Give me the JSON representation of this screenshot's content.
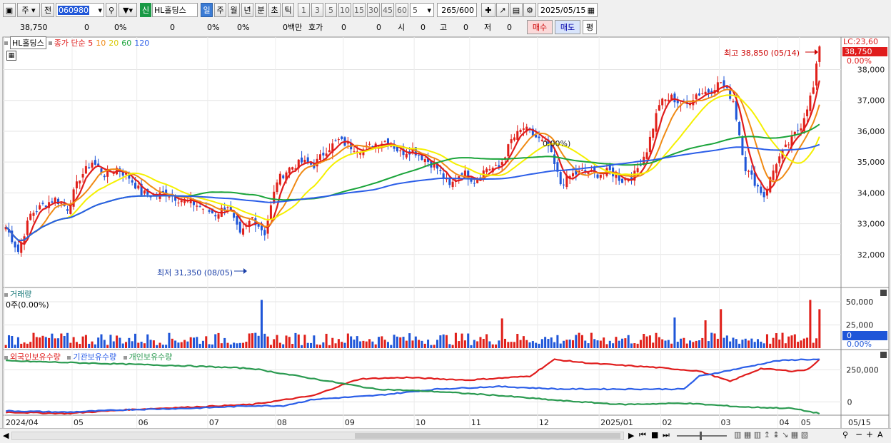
{
  "toolbar": {
    "stock_code": "060980",
    "period_type": "주",
    "prev_label": "전",
    "market_badge": "신",
    "stock_name": "HL홀딩스",
    "periods": [
      "일",
      "주",
      "월",
      "년",
      "분",
      "초",
      "틱"
    ],
    "active_period": "일",
    "minute_options": [
      "1",
      "3",
      "5",
      "10",
      "15",
      "30",
      "45",
      "60"
    ],
    "interval": "5",
    "count": "265",
    "count_total": "/600",
    "date": "2025/05/15"
  },
  "quote": {
    "price": "38,750",
    "change": "0",
    "change_pct": "0%",
    "volume": "0",
    "volume_pct": "0%",
    "extra_pct": "0%",
    "trade_value": "0백만",
    "hoga_label": "호가",
    "hoga_v1": "0",
    "hoga_v2": "0",
    "open_label": "시",
    "open": "0",
    "high_label": "고",
    "high": "0",
    "low_label": "저",
    "low": "0",
    "buy_label": "매수",
    "sell_label": "매도",
    "eval_label": "평"
  },
  "colors": {
    "up": "#e0201a",
    "down": "#1f56d8",
    "ma5": "#e01c1c",
    "ma10": "#f08a14",
    "ma20": "#f5f000",
    "ma60": "#1aa43a",
    "ma120": "#2b5ee8",
    "foreign": "#e01c1c",
    "institution": "#2b5ee8",
    "individual": "#2a9a50"
  },
  "chart_data": [
    {
      "type": "candlestick",
      "title": "HL홀딩스",
      "legend": [
        "종가 단순 5",
        "10",
        "20",
        "60",
        "120"
      ],
      "y_ticks": [
        32000,
        33000,
        34000,
        35000,
        36000,
        37000,
        38000
      ],
      "ylim": [
        31000,
        39100
      ],
      "lc_label": "LC:23,60",
      "last_price_tag": "38,750",
      "last_pct_tag": "0.00%",
      "high_annotation": "최고 38,850 (05/14)",
      "low_annotation": "최저 31,350 (08/05)",
      "crosshair_label": "0.00%)",
      "x_ticks": [
        "2024/04",
        "05",
        "06",
        "07",
        "08",
        "09",
        "10",
        "11",
        "12",
        "2025/01",
        "02",
        "03",
        "04",
        "05",
        "05/15"
      ],
      "close_anchors": [
        [
          0,
          32900
        ],
        [
          4,
          32100
        ],
        [
          8,
          33300
        ],
        [
          12,
          33600
        ],
        [
          16,
          33800
        ],
        [
          20,
          33500
        ],
        [
          24,
          34500
        ],
        [
          28,
          35000
        ],
        [
          32,
          34600
        ],
        [
          36,
          34800
        ],
        [
          40,
          34500
        ],
        [
          44,
          34000
        ],
        [
          48,
          33900
        ],
        [
          52,
          34000
        ],
        [
          56,
          33800
        ],
        [
          60,
          33700
        ],
        [
          64,
          33500
        ],
        [
          68,
          33300
        ],
        [
          72,
          33600
        ],
        [
          76,
          32600
        ],
        [
          80,
          33200
        ],
        [
          84,
          32700
        ],
        [
          88,
          34400
        ],
        [
          92,
          34800
        ],
        [
          96,
          35000
        ],
        [
          100,
          34900
        ],
        [
          104,
          35400
        ],
        [
          108,
          35700
        ],
        [
          112,
          35500
        ],
        [
          116,
          35400
        ],
        [
          120,
          35600
        ],
        [
          124,
          35700
        ],
        [
          128,
          35300
        ],
        [
          132,
          35400
        ],
        [
          136,
          35100
        ],
        [
          140,
          34800
        ],
        [
          144,
          34200
        ],
        [
          148,
          34700
        ],
        [
          152,
          34400
        ],
        [
          156,
          34800
        ],
        [
          160,
          34800
        ],
        [
          164,
          35700
        ],
        [
          168,
          36100
        ],
        [
          172,
          35800
        ],
        [
          176,
          35500
        ],
        [
          180,
          34300
        ],
        [
          184,
          34600
        ],
        [
          188,
          34700
        ],
        [
          192,
          34600
        ],
        [
          196,
          34700
        ],
        [
          200,
          34400
        ],
        [
          204,
          34600
        ],
        [
          208,
          35400
        ],
        [
          212,
          36900
        ],
        [
          216,
          37100
        ],
        [
          220,
          36800
        ],
        [
          224,
          37200
        ],
        [
          228,
          37300
        ],
        [
          232,
          37600
        ],
        [
          236,
          37000
        ],
        [
          240,
          34800
        ],
        [
          244,
          34200
        ],
        [
          246,
          33900
        ],
        [
          250,
          35000
        ],
        [
          254,
          35600
        ],
        [
          258,
          36200
        ],
        [
          262,
          37400
        ],
        [
          264,
          38750
        ]
      ],
      "ma_periods": [
        5,
        10,
        20,
        60,
        120
      ],
      "candle_count": 265
    },
    {
      "type": "bar",
      "title": "거래량",
      "legend": [
        "거래량"
      ],
      "y_ticks": [
        0,
        25000,
        50000
      ],
      "ylim": [
        0,
        60000
      ],
      "current_label": "0주(0.00%)",
      "last_tag": "0",
      "pct_tag": "0.00%",
      "values_note": "daily volume bars, red up / blue down",
      "spikes": [
        [
          83,
          52000
        ],
        [
          161,
          32000
        ],
        [
          217,
          33000
        ],
        [
          227,
          30000
        ],
        [
          232,
          42000
        ],
        [
          261,
          52000
        ],
        [
          264,
          42000
        ]
      ],
      "base_volume": 9000
    },
    {
      "type": "line",
      "title": "외국인보유수량",
      "legend": [
        "외국인보유수량",
        "기관보유수량",
        "개인보유수량"
      ],
      "y_ticks": [
        0,
        250000
      ],
      "ylim": [
        -120000,
        380000
      ],
      "series": [
        {
          "name": "외국인보유수량",
          "anchors": [
            [
              0,
              -80000
            ],
            [
              20,
              -90000
            ],
            [
              40,
              -60000
            ],
            [
              60,
              -40000
            ],
            [
              80,
              -20000
            ],
            [
              100,
              50000
            ],
            [
              110,
              140000
            ],
            [
              115,
              180000
            ],
            [
              130,
              190000
            ],
            [
              150,
              170000
            ],
            [
              170,
              200000
            ],
            [
              178,
              330000
            ],
            [
              190,
              300000
            ],
            [
              210,
              270000
            ],
            [
              225,
              240000
            ],
            [
              235,
              160000
            ],
            [
              245,
              260000
            ],
            [
              255,
              240000
            ],
            [
              260,
              250000
            ],
            [
              264,
              330000
            ]
          ]
        },
        {
          "name": "기관보유수량",
          "anchors": [
            [
              0,
              -70000
            ],
            [
              20,
              -80000
            ],
            [
              40,
              -60000
            ],
            [
              60,
              -50000
            ],
            [
              80,
              -30000
            ],
            [
              90,
              -30000
            ],
            [
              100,
              20000
            ],
            [
              120,
              50000
            ],
            [
              140,
              100000
            ],
            [
              160,
              120000
            ],
            [
              180,
              100000
            ],
            [
              200,
              100000
            ],
            [
              220,
              100000
            ],
            [
              225,
              200000
            ],
            [
              240,
              270000
            ],
            [
              250,
              320000
            ],
            [
              258,
              330000
            ],
            [
              264,
              330000
            ]
          ]
        },
        {
          "name": "개인보유수량",
          "anchors": [
            [
              0,
              320000
            ],
            [
              30,
              300000
            ],
            [
              60,
              280000
            ],
            [
              80,
              260000
            ],
            [
              100,
              180000
            ],
            [
              120,
              100000
            ],
            [
              140,
              80000
            ],
            [
              160,
              50000
            ],
            [
              180,
              10000
            ],
            [
              200,
              -20000
            ],
            [
              220,
              -10000
            ],
            [
              240,
              -40000
            ],
            [
              255,
              -50000
            ],
            [
              264,
              -90000
            ]
          ]
        }
      ]
    }
  ]
}
